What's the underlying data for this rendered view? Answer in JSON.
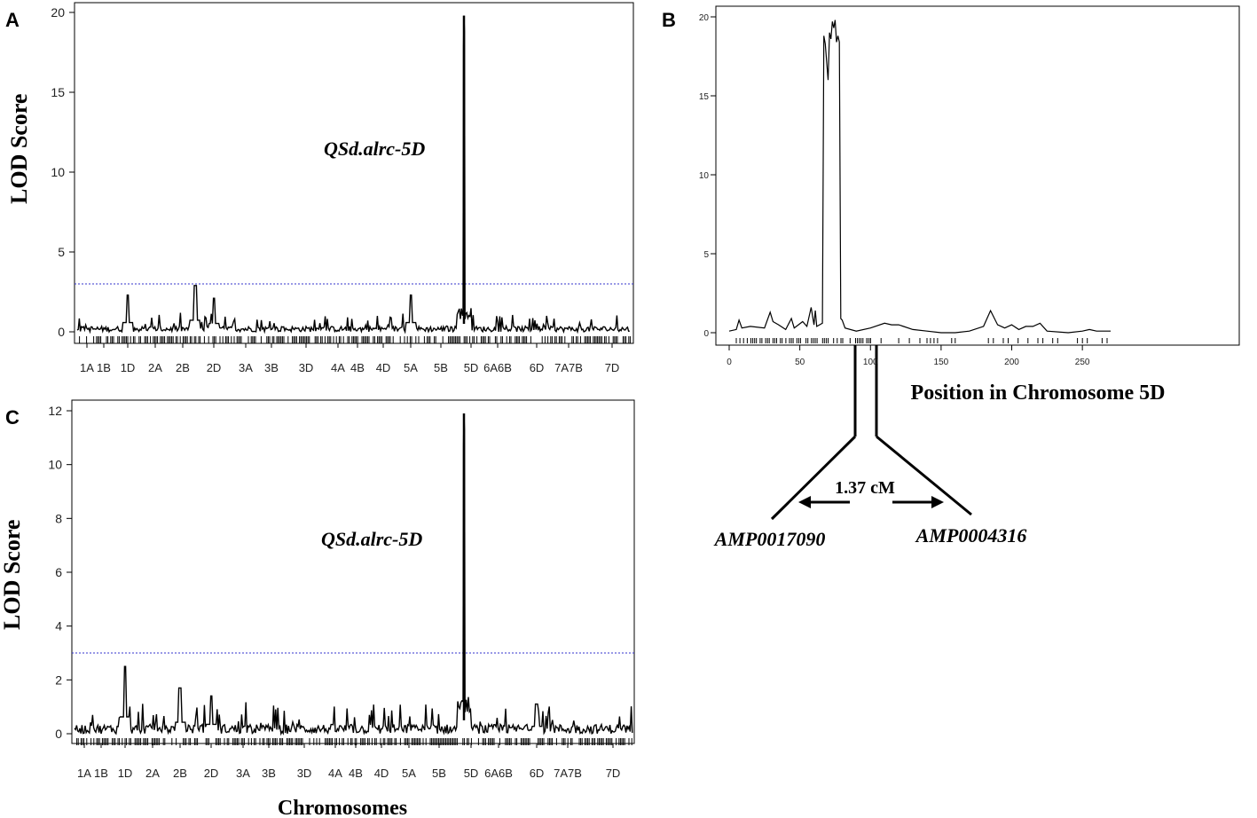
{
  "panels": {
    "A": "A",
    "B": "B",
    "C": "C"
  },
  "annotations": {
    "qtl_A": "QSd.alrc-5D",
    "qtl_C": "QSd.alrc-5D",
    "distance": "1.37 cM",
    "marker_left": "AMP0017090",
    "marker_right": "AMP0004316"
  },
  "chart_data": [
    {
      "id": "A",
      "type": "line",
      "title": "",
      "xlabel": "",
      "ylabel": "LOD Score",
      "ylim": [
        0,
        20
      ],
      "yticks": [
        0,
        5,
        10,
        15,
        20
      ],
      "threshold": 3,
      "chromosomes": [
        "1A",
        "1B",
        "1D",
        "2A",
        "2B",
        "2D",
        "3A",
        "3B",
        "3D",
        "4A",
        "4B",
        "4D",
        "5A",
        "5B",
        "5D",
        "6A",
        "6B",
        "6D",
        "7A",
        "7B",
        "7D"
      ],
      "chromosome_labels": [
        "1A",
        "1B",
        "1D",
        "2A",
        "2B",
        "2D",
        "3A",
        "3B",
        "3D",
        "4A",
        "4B",
        "4D",
        "5A",
        "5B",
        "5D",
        "6A6B",
        "6D",
        "7A7B",
        "7D"
      ],
      "peak": {
        "chromosome": "5D",
        "lod": 19.8
      },
      "secondary_peaks": [
        {
          "chromosome": "1D",
          "lod": 2.3
        },
        {
          "chromosome": "2B",
          "lod": 2.9
        },
        {
          "chromosome": "2D",
          "lod": 2.1
        },
        {
          "chromosome": "5A",
          "lod": 2.3
        }
      ]
    },
    {
      "id": "B",
      "type": "line",
      "title": "",
      "xlabel": "Position in Chromosome 5D",
      "ylabel": "",
      "xlim": [
        0,
        270
      ],
      "ylim": [
        0,
        20
      ],
      "xticks": [
        0,
        50,
        100,
        150,
        200,
        250
      ],
      "yticks": [
        0,
        5,
        10,
        15,
        20
      ],
      "x": [
        0,
        5,
        7,
        9,
        15,
        25,
        29,
        31,
        35,
        40,
        44,
        46,
        52,
        55,
        58,
        60,
        61,
        62,
        64,
        66,
        67,
        68,
        70,
        71,
        72,
        73,
        74,
        75,
        76,
        77,
        78,
        79,
        80,
        82,
        90,
        100,
        110,
        115,
        120,
        130,
        140,
        150,
        160,
        170,
        180,
        185,
        190,
        195,
        200,
        205,
        210,
        215,
        220,
        225,
        240,
        250,
        255,
        260,
        270
      ],
      "y": [
        0.1,
        0.2,
        0.8,
        0.3,
        0.4,
        0.3,
        1.3,
        0.7,
        0.5,
        0.2,
        0.9,
        0.3,
        0.7,
        0.4,
        1.6,
        0.5,
        1.4,
        0.4,
        0.5,
        0.6,
        18.8,
        18.3,
        16.0,
        19.0,
        18.6,
        19.7,
        19.3,
        19.8,
        18.4,
        18.8,
        18.4,
        0.9,
        0.8,
        0.3,
        0.1,
        0.3,
        0.6,
        0.5,
        0.5,
        0.2,
        0.1,
        0.0,
        0.0,
        0.1,
        0.4,
        1.4,
        0.5,
        0.3,
        0.5,
        0.2,
        0.4,
        0.4,
        0.6,
        0.1,
        0.0,
        0.1,
        0.2,
        0.1,
        0.1
      ]
    },
    {
      "id": "C",
      "type": "line",
      "title": "",
      "xlabel": "Chromosomes",
      "ylabel": "LOD Score",
      "ylim": [
        0,
        12
      ],
      "yticks": [
        0,
        2,
        4,
        6,
        8,
        10,
        12
      ],
      "threshold": 3,
      "chromosomes": [
        "1A",
        "1B",
        "1D",
        "2A",
        "2B",
        "2D",
        "3A",
        "3B",
        "3D",
        "4A",
        "4B",
        "4D",
        "5A",
        "5B",
        "5D",
        "6A",
        "6B",
        "6D",
        "7A",
        "7B",
        "7D"
      ],
      "chromosome_labels": [
        "1A",
        "1B",
        "1D",
        "2A",
        "2B",
        "2D",
        "3A",
        "3B",
        "3D",
        "4A",
        "4B",
        "4D",
        "5A",
        "5B",
        "5D",
        "6A6B",
        "6D",
        "7A7B",
        "7D"
      ],
      "peak": {
        "chromosome": "5D",
        "lod": 11.9
      },
      "secondary_peaks": [
        {
          "chromosome": "1D",
          "lod": 2.5
        },
        {
          "chromosome": "2B",
          "lod": 1.7
        },
        {
          "chromosome": "2D",
          "lod": 1.4
        },
        {
          "chromosome": "6B",
          "lod": 1.1
        }
      ]
    }
  ],
  "colors": {
    "line": "#000000",
    "threshold": "#3333cc",
    "frame": "#000000"
  }
}
